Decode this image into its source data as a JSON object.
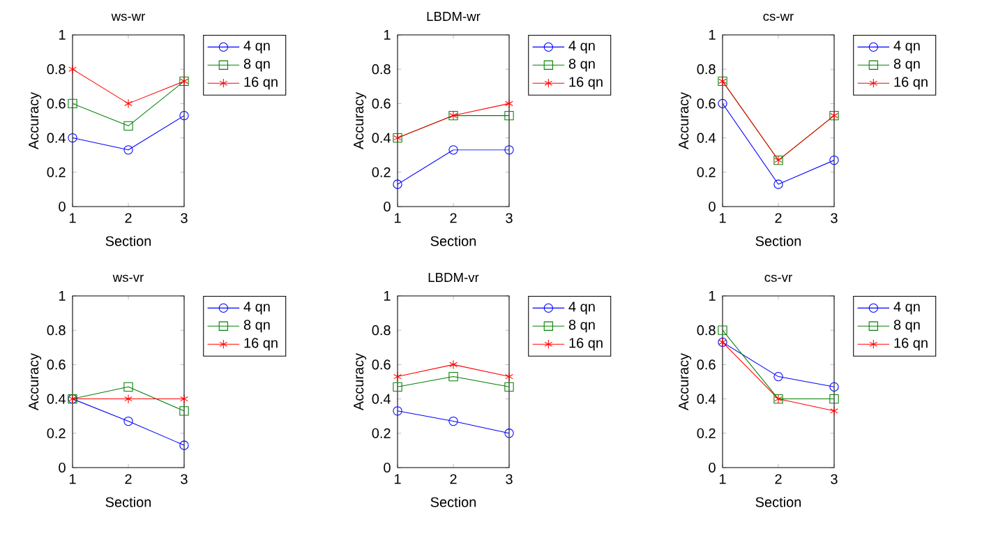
{
  "chart_data": [
    {
      "type": "line",
      "title": "ws-wr",
      "xlabel": "Section",
      "ylabel": "Accuracy",
      "x": [
        1,
        2,
        3
      ],
      "xlim": [
        1,
        3
      ],
      "xticks": [
        1,
        2,
        3
      ],
      "ylim": [
        0,
        1
      ],
      "yticks": [
        0,
        0.2,
        0.4,
        0.6,
        0.8,
        1
      ],
      "legend": "right",
      "series": [
        {
          "name": "4 qn",
          "color": "#0000ff",
          "marker": "circle",
          "values": [
            0.4,
            0.33,
            0.53
          ]
        },
        {
          "name": "8 qn",
          "color": "#008000",
          "marker": "square",
          "values": [
            0.6,
            0.47,
            0.73
          ]
        },
        {
          "name": "16 qn",
          "color": "#ff0000",
          "marker": "cross",
          "values": [
            0.8,
            0.6,
            0.73
          ]
        }
      ]
    },
    {
      "type": "line",
      "title": "LBDM-wr",
      "xlabel": "Section",
      "ylabel": "Accuracy",
      "x": [
        1,
        2,
        3
      ],
      "xlim": [
        1,
        3
      ],
      "xticks": [
        1,
        2,
        3
      ],
      "ylim": [
        0,
        1
      ],
      "yticks": [
        0,
        0.2,
        0.4,
        0.6,
        0.8,
        1
      ],
      "legend": "right",
      "series": [
        {
          "name": "4 qn",
          "color": "#0000ff",
          "marker": "circle",
          "values": [
            0.13,
            0.33,
            0.33
          ]
        },
        {
          "name": "8 qn",
          "color": "#008000",
          "marker": "square",
          "values": [
            0.4,
            0.53,
            0.53
          ]
        },
        {
          "name": "16 qn",
          "color": "#ff0000",
          "marker": "cross",
          "values": [
            0.4,
            0.53,
            0.6
          ]
        }
      ]
    },
    {
      "type": "line",
      "title": "cs-wr",
      "xlabel": "Section",
      "ylabel": "Accuracy",
      "x": [
        1,
        2,
        3
      ],
      "xlim": [
        1,
        3
      ],
      "xticks": [
        1,
        2,
        3
      ],
      "ylim": [
        0,
        1
      ],
      "yticks": [
        0,
        0.2,
        0.4,
        0.6,
        0.8,
        1
      ],
      "legend": "right",
      "series": [
        {
          "name": "4 qn",
          "color": "#0000ff",
          "marker": "circle",
          "values": [
            0.6,
            0.13,
            0.27
          ]
        },
        {
          "name": "8 qn",
          "color": "#008000",
          "marker": "square",
          "values": [
            0.73,
            0.27,
            0.53
          ]
        },
        {
          "name": "16 qn",
          "color": "#ff0000",
          "marker": "cross",
          "values": [
            0.73,
            0.27,
            0.53
          ]
        }
      ]
    },
    {
      "type": "line",
      "title": "ws-vr",
      "xlabel": "Section",
      "ylabel": "Accuracy",
      "x": [
        1,
        2,
        3
      ],
      "xlim": [
        1,
        3
      ],
      "xticks": [
        1,
        2,
        3
      ],
      "ylim": [
        0,
        1
      ],
      "yticks": [
        0,
        0.2,
        0.4,
        0.6,
        0.8,
        1
      ],
      "legend": "right",
      "series": [
        {
          "name": "4 qn",
          "color": "#0000ff",
          "marker": "circle",
          "values": [
            0.4,
            0.27,
            0.13
          ]
        },
        {
          "name": "8 qn",
          "color": "#008000",
          "marker": "square",
          "values": [
            0.4,
            0.47,
            0.33
          ]
        },
        {
          "name": "16 qn",
          "color": "#ff0000",
          "marker": "cross",
          "values": [
            0.4,
            0.4,
            0.4
          ]
        }
      ]
    },
    {
      "type": "line",
      "title": "LBDM-vr",
      "xlabel": "Section",
      "ylabel": "Accuracy",
      "x": [
        1,
        2,
        3
      ],
      "xlim": [
        1,
        3
      ],
      "xticks": [
        1,
        2,
        3
      ],
      "ylim": [
        0,
        1
      ],
      "yticks": [
        0,
        0.2,
        0.4,
        0.6,
        0.8,
        1
      ],
      "legend": "right",
      "series": [
        {
          "name": "4 qn",
          "color": "#0000ff",
          "marker": "circle",
          "values": [
            0.33,
            0.27,
            0.2
          ]
        },
        {
          "name": "8 qn",
          "color": "#008000",
          "marker": "square",
          "values": [
            0.47,
            0.53,
            0.47
          ]
        },
        {
          "name": "16 qn",
          "color": "#ff0000",
          "marker": "cross",
          "values": [
            0.53,
            0.6,
            0.53
          ]
        }
      ]
    },
    {
      "type": "line",
      "title": "cs-vr",
      "xlabel": "Section",
      "ylabel": "Accuracy",
      "x": [
        1,
        2,
        3
      ],
      "xlim": [
        1,
        3
      ],
      "xticks": [
        1,
        2,
        3
      ],
      "ylim": [
        0,
        1
      ],
      "yticks": [
        0,
        0.2,
        0.4,
        0.6,
        0.8,
        1
      ],
      "legend": "right",
      "series": [
        {
          "name": "4 qn",
          "color": "#0000ff",
          "marker": "circle",
          "values": [
            0.73,
            0.53,
            0.47
          ]
        },
        {
          "name": "8 qn",
          "color": "#008000",
          "marker": "square",
          "values": [
            0.8,
            0.4,
            0.4
          ]
        },
        {
          "name": "16 qn",
          "color": "#ff0000",
          "marker": "cross",
          "values": [
            0.73,
            0.4,
            0.33
          ]
        }
      ]
    }
  ]
}
